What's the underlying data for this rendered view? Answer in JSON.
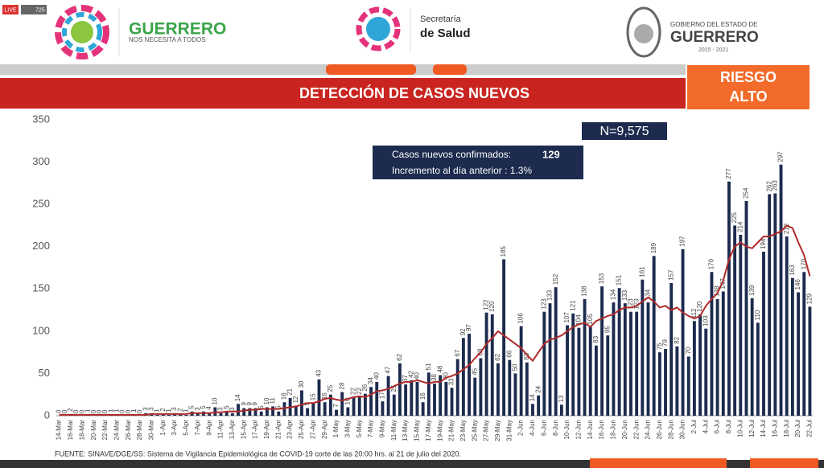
{
  "header": {
    "live": "LIVE",
    "viewers": "725",
    "brand": "GUERRERO",
    "slogan": "NOS NECESITA A TODOS",
    "secretaria": "Secretaría",
    "salud": "de Salud",
    "gobierno": "GOBIERNO DEL ESTADO DE",
    "estado": "GUERRERO",
    "period": "2015 - 2021"
  },
  "banner": {
    "title": "DETECCIÓN DE CASOS NUEVOS",
    "risk_1": "RIESGO",
    "risk_2": "ALTO"
  },
  "summary": {
    "total": "N=9,575",
    "confirmed_label": "Casos nuevos confirmados:",
    "confirmed_value": "129",
    "increment": "Incremento al día anterior : 1.3%"
  },
  "footer": "FUENTE: SINAVE/DGE/SS: Sistema de Vigilancia Epidemiológica de COVID-19 corte de las 20:00 hrs. al 21 de julio del 2020.",
  "chart_data": {
    "type": "bar",
    "ylim": [
      0,
      350
    ],
    "yticks": [
      0,
      50,
      100,
      150,
      200,
      250,
      300,
      350
    ],
    "grid": false,
    "categories": [
      "14-Mar",
      null,
      "16-Mar",
      null,
      "18-Mar",
      null,
      "20-Mar",
      null,
      "22-Mar",
      null,
      "24-Mar",
      null,
      "26-Mar",
      null,
      "28-Mar",
      null,
      "30-Mar",
      null,
      "1-Apr",
      null,
      "3-Apr",
      null,
      "5-Apr",
      null,
      "7-Apr",
      null,
      "9-Apr",
      null,
      "11-Apr",
      null,
      "13-Apr",
      null,
      "15-Apr",
      null,
      "17-Apr",
      null,
      "19-Apr",
      null,
      "21-Apr",
      null,
      "23-Apr",
      null,
      "25-Apr",
      null,
      "27-Apr",
      null,
      "29-Apr",
      null,
      "1-May",
      null,
      "3-May",
      null,
      "5-May",
      null,
      "7-May",
      null,
      "9-May",
      null,
      "11-May",
      null,
      "13-May",
      null,
      "15-May",
      null,
      "17-May",
      null,
      "19-May",
      null,
      "21-May",
      null,
      "23-May",
      null,
      "25-May",
      null,
      "27-May",
      null,
      "29-May",
      null,
      "31-May",
      null,
      "2-Jun",
      null,
      "4-Jun",
      null,
      "6-Jun",
      null,
      "8-Jun",
      null,
      "10-Jun",
      null,
      "12-Jun",
      null,
      "14-Jun",
      null,
      "16-Jun",
      null,
      "18-Jun",
      null,
      "20-Jun",
      null,
      "22-Jun",
      null,
      "24-Jun",
      null,
      "26-Jun",
      null,
      "28-Jun",
      null,
      "30-Jun",
      null,
      "2-Jul",
      null,
      "4-Jul",
      null,
      "6-Jul",
      null,
      "8-Jul",
      null,
      "10-Jul",
      null,
      "12-Jul",
      null,
      "14-Jul",
      null,
      "16-Jul",
      null,
      "18-Jul",
      null,
      "20-Jul",
      null,
      "22-Jul"
    ],
    "series": [
      {
        "type": "bar",
        "color": "#1c2b4e",
        "values": [
          0,
          0,
          2,
          0,
          0,
          1,
          0,
          0,
          0,
          1,
          1,
          0,
          0,
          1,
          0,
          3,
          3,
          1,
          2,
          1,
          3,
          2,
          1,
          5,
          3,
          5,
          4,
          10,
          3,
          5,
          3,
          14,
          9,
          9,
          9,
          5,
          10,
          11,
          5,
          16,
          21,
          12,
          30,
          9,
          15,
          43,
          16,
          25,
          7,
          28,
          10,
          22,
          22,
          26,
          34,
          40,
          17,
          47,
          25,
          62,
          37,
          42,
          40,
          16,
          51,
          38,
          48,
          40,
          33,
          67,
          92,
          97,
          45,
          68,
          122,
          120,
          62,
          185,
          66,
          50,
          106,
          63,
          14,
          24,
          123,
          133,
          152,
          13,
          107,
          121,
          104,
          138,
          105,
          83,
          153,
          95,
          134,
          151,
          133,
          123,
          123,
          161,
          134,
          189,
          75,
          79,
          157,
          82,
          197,
          70,
          112,
          120,
          103,
          170,
          138,
          147,
          277,
          225,
          214,
          254,
          139,
          110,
          194,
          262,
          263,
          297,
          212,
          163,
          146,
          170,
          129
        ]
      },
      {
        "type": "line",
        "color": "#b02a2a",
        "values": [
          1,
          1,
          1,
          1,
          1,
          1,
          1,
          1,
          1,
          1,
          1,
          1,
          1,
          1,
          1,
          1,
          2,
          2,
          2,
          2,
          2,
          2,
          2,
          3,
          3,
          3,
          3,
          4,
          4,
          5,
          5,
          5,
          6,
          7,
          7,
          8,
          8,
          8,
          8,
          9,
          10,
          11,
          13,
          15,
          15,
          17,
          20,
          21,
          19,
          18,
          20,
          22,
          23,
          22,
          25,
          29,
          30,
          32,
          35,
          38,
          40,
          40,
          42,
          40,
          38,
          40,
          40,
          45,
          47,
          50,
          55,
          60,
          68,
          75,
          85,
          92,
          100,
          95,
          90,
          85,
          80,
          72,
          65,
          75,
          85,
          90,
          92,
          95,
          100,
          105,
          108,
          110,
          105,
          112,
          115,
          118,
          120,
          125,
          128,
          128,
          130,
          135,
          140,
          135,
          128,
          130,
          125,
          128,
          122,
          118,
          115,
          118,
          130,
          138,
          145,
          160,
          185,
          200,
          205,
          200,
          198,
          205,
          212,
          212,
          215,
          218,
          225,
          222,
          205,
          190,
          165
        ]
      }
    ]
  }
}
